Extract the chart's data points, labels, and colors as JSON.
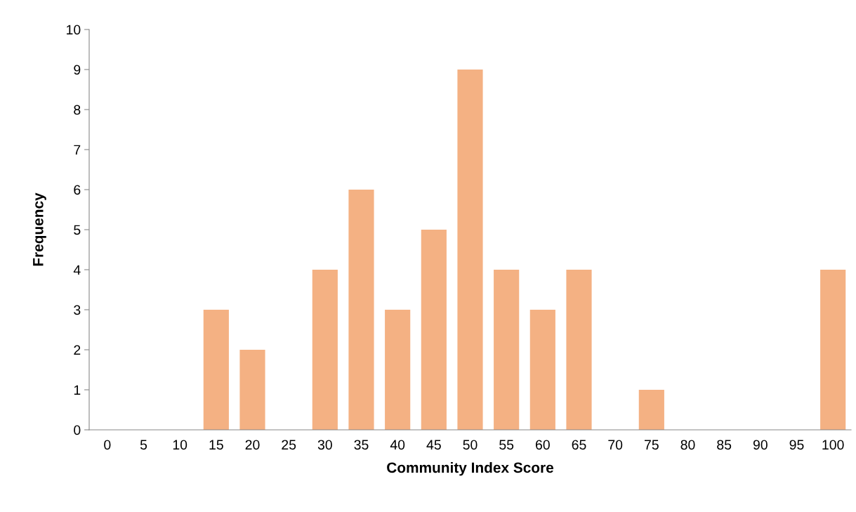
{
  "chart_data": {
    "type": "bar",
    "xlabel": "Community Index Score",
    "ylabel": "Frequency",
    "categories": [
      "0",
      "5",
      "10",
      "15",
      "20",
      "25",
      "30",
      "35",
      "40",
      "45",
      "50",
      "55",
      "60",
      "65",
      "70",
      "75",
      "80",
      "85",
      "90",
      "95",
      "100"
    ],
    "values": [
      0,
      0,
      0,
      3,
      2,
      0,
      4,
      6,
      3,
      5,
      9,
      4,
      3,
      4,
      0,
      1,
      0,
      0,
      0,
      0,
      4
    ],
    "color": "#f4b183",
    "ylim": [
      0,
      10
    ],
    "yticks": [
      0,
      1,
      2,
      3,
      4,
      5,
      6,
      7,
      8,
      9,
      10
    ],
    "grid": false,
    "legend": false
  }
}
